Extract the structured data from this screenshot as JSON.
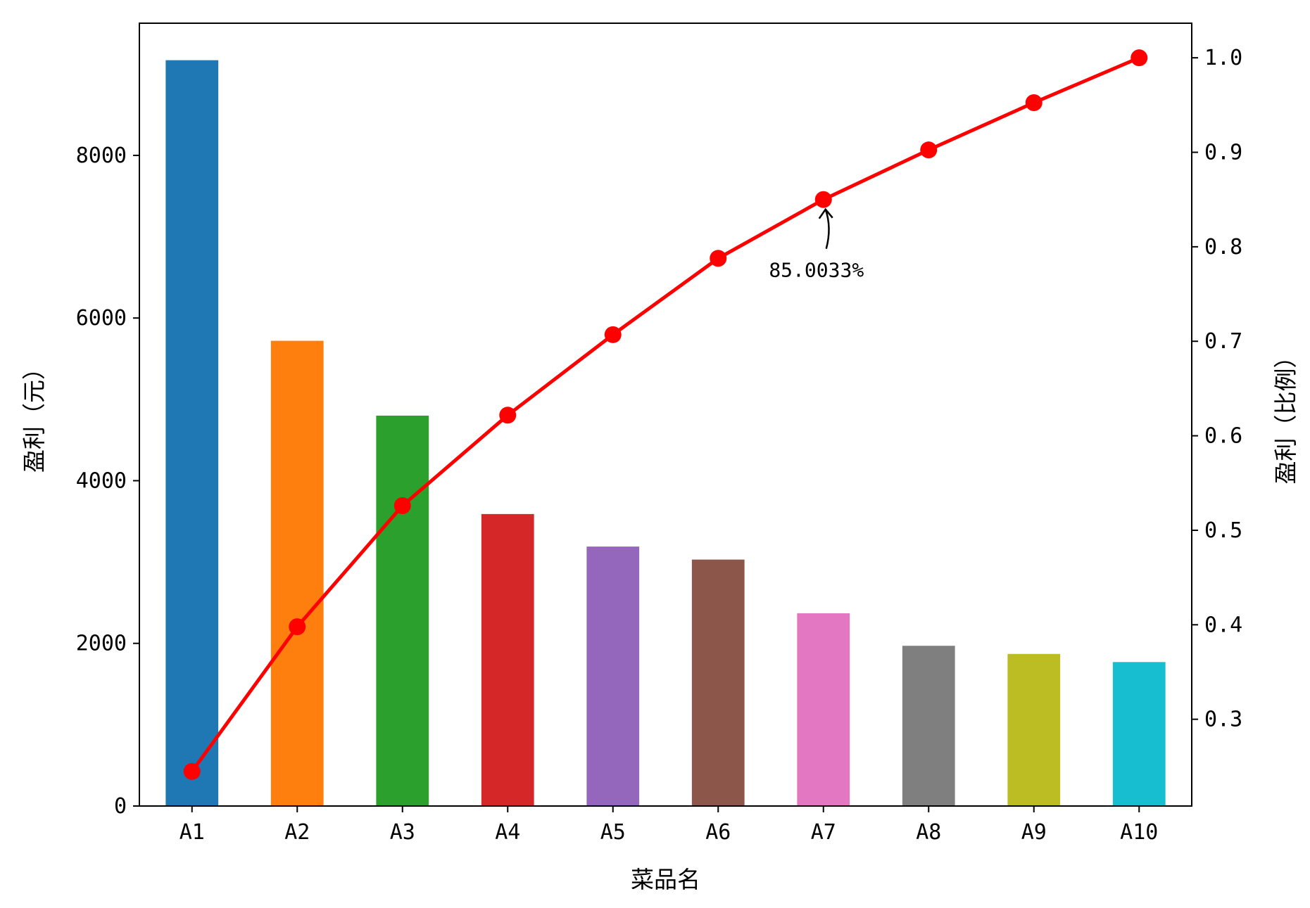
{
  "chart_data": {
    "type": "bar+line",
    "title": "",
    "categories": [
      "A1",
      "A2",
      "A3",
      "A4",
      "A5",
      "A6",
      "A7",
      "A8",
      "A9",
      "A10"
    ],
    "bar_series": {
      "values": [
        9170,
        5720,
        4800,
        3590,
        3190,
        3030,
        2370,
        1970,
        1870,
        1770
      ],
      "colors": [
        "#1f77b4",
        "#ff7f0e",
        "#2ca02c",
        "#d62728",
        "#9467bd",
        "#8c564b",
        "#e377c2",
        "#7f7f7f",
        "#bcbd22",
        "#17becf"
      ]
    },
    "line_series": {
      "values": [
        0.2448,
        0.3979,
        0.526,
        0.6218,
        0.707,
        0.7878,
        0.85,
        0.9025,
        0.9525,
        1.0
      ],
      "color": "#ff0000"
    },
    "xlabel": "菜品名",
    "ylabel_left": "盈利（元）",
    "ylabel_right": "盈利（比例）",
    "ylim_left": [
      0,
      9625
    ],
    "ylim_right": [
      0.2082,
      1.0366
    ],
    "yticks_left": [
      0,
      2000,
      4000,
      6000,
      8000
    ],
    "yticks_right": [
      0.3,
      0.4,
      0.5,
      0.6,
      0.7,
      0.8,
      0.9,
      1.0
    ],
    "ytick_labels_right": [
      "0.3",
      "0.4",
      "0.5",
      "0.6",
      "0.7",
      "0.8",
      "0.9",
      "1.0"
    ],
    "annotation": {
      "text": "85.0033%",
      "category": "A7",
      "value": 0.850033
    },
    "grid": false,
    "legend": "none"
  }
}
